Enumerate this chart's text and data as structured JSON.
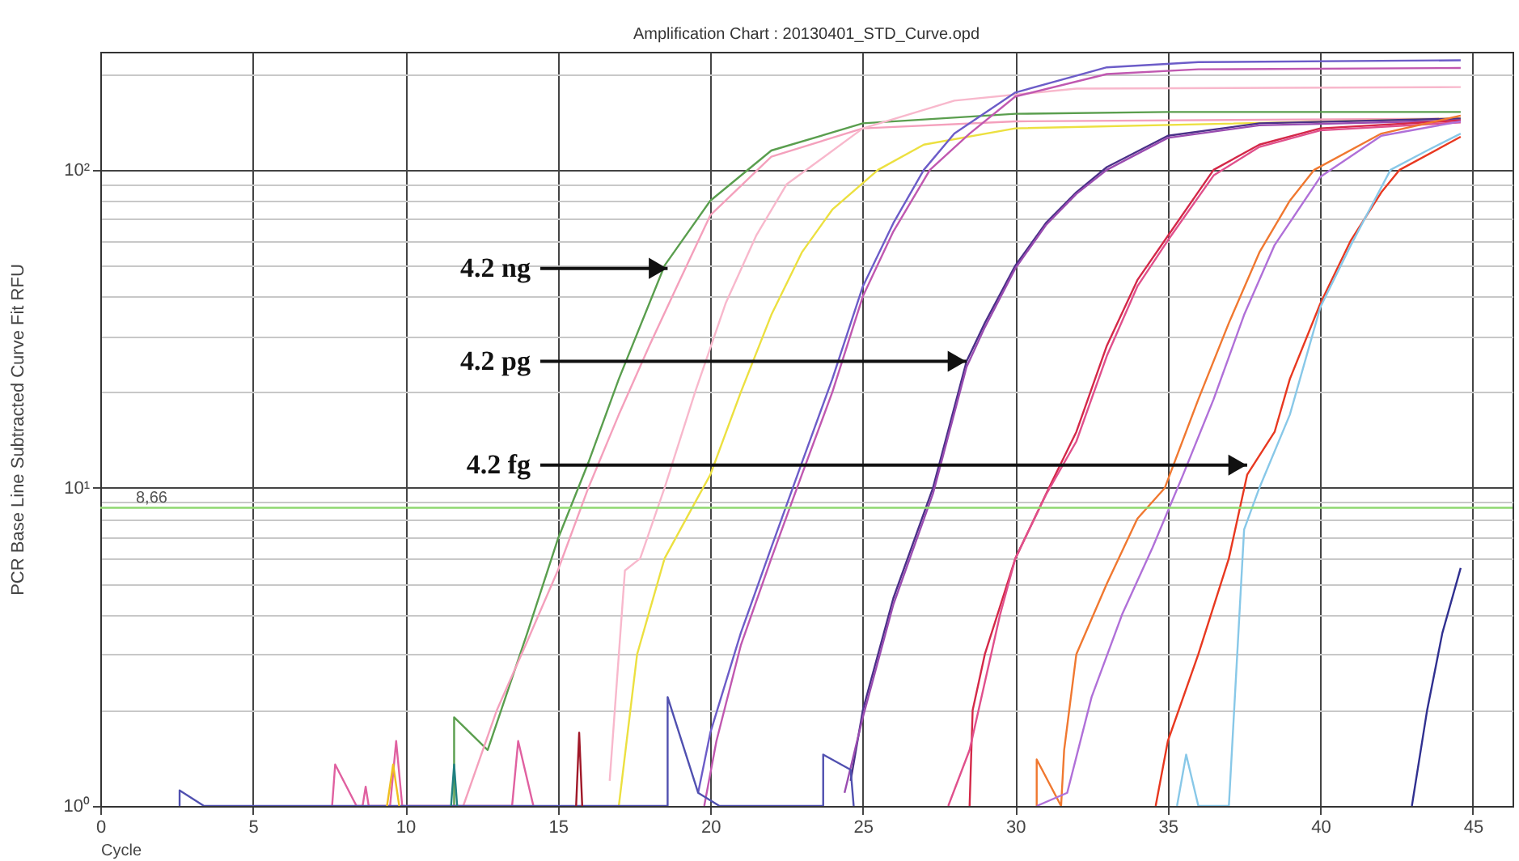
{
  "chart_data": {
    "type": "line",
    "title": "Amplification Chart : 20130401_STD_Curve.opd",
    "xlabel": "Cycle",
    "ylabel": "PCR Base Line Subtracted Curve Fit RFU",
    "xlim": [
      0,
      46.3
    ],
    "xticks": [
      0,
      5,
      10,
      15,
      20,
      25,
      30,
      35,
      40,
      45
    ],
    "ylim": [
      1,
      235
    ],
    "yticks": [
      {
        "value": 1,
        "label": "10⁰"
      },
      {
        "value": 2,
        "label": null
      },
      {
        "value": 3,
        "label": null
      },
      {
        "value": 4,
        "label": null
      },
      {
        "value": 5,
        "label": null
      },
      {
        "value": 6,
        "label": null
      },
      {
        "value": 7,
        "label": null
      },
      {
        "value": 8,
        "label": null
      },
      {
        "value": 9,
        "label": null
      },
      {
        "value": 10,
        "label": "10¹"
      },
      {
        "value": 20,
        "label": null
      },
      {
        "value": 30,
        "label": null
      },
      {
        "value": 40,
        "label": null
      },
      {
        "value": 50,
        "label": null
      },
      {
        "value": 60,
        "label": null
      },
      {
        "value": 70,
        "label": null
      },
      {
        "value": 80,
        "label": null
      },
      {
        "value": 90,
        "label": null
      },
      {
        "value": 100,
        "label": "10²"
      },
      {
        "value": 200,
        "label": null
      }
    ],
    "log": "y",
    "grid": true,
    "line_style": "solid",
    "ref_lines": [
      {
        "axis": "y",
        "value": 8.66,
        "label": "8,66",
        "color": "#8fd870"
      }
    ],
    "annotations": [
      {
        "text": "4.2 ng",
        "x": 18.6,
        "y": 49
      },
      {
        "text": "4.2 pg",
        "x": 28.4,
        "y": 25
      },
      {
        "text": "4.2 fg",
        "x": 37.6,
        "y": 11.8
      }
    ],
    "series": [
      {
        "color": "#5a9e4e",
        "x": [
          11.6,
          11.6,
          12.7,
          14,
          15,
          16,
          17,
          18.5,
          20,
          22,
          25,
          30,
          35,
          40,
          44.6
        ],
        "values": [
          1,
          1.9,
          1.5,
          3.5,
          6.9,
          12,
          22,
          50,
          80,
          115,
          140,
          150,
          152,
          152,
          152
        ]
      },
      {
        "color": "#f4a0bc",
        "x": [
          11.9,
          13,
          14,
          15,
          16,
          17,
          18,
          19,
          20,
          22,
          25,
          30,
          44.6
        ],
        "values": [
          1,
          2,
          3.3,
          5.5,
          10,
          17,
          28,
          45,
          72,
          110,
          135,
          142,
          145
        ]
      },
      {
        "color": "#f8b8cc",
        "x": [
          16.7,
          17.2,
          17.7,
          18.5,
          19.5,
          20.5,
          21.5,
          22.5,
          25,
          28,
          32,
          44.6
        ],
        "values": [
          1.2,
          5.5,
          6,
          10,
          20,
          38,
          62,
          90,
          135,
          165,
          180,
          182
        ]
      },
      {
        "color": "#ece040",
        "x": [
          17,
          17.6,
          18.5,
          19.5,
          20,
          21,
          22,
          23,
          24,
          25.5,
          27,
          30,
          44.6
        ],
        "values": [
          1,
          3,
          6,
          9,
          11,
          20,
          35,
          55,
          75,
          100,
          120,
          135,
          145
        ]
      },
      {
        "color": "#6c5cc8",
        "x": [
          19.6,
          20,
          21,
          22,
          23,
          24,
          25,
          26,
          27,
          28,
          30,
          33,
          36,
          44.6
        ],
        "values": [
          1.1,
          1.7,
          3.5,
          6.5,
          12,
          22,
          43,
          68,
          100,
          130,
          175,
          210,
          218,
          221
        ]
      },
      {
        "color": "#c058b0",
        "x": [
          19.8,
          20.2,
          21,
          22,
          23,
          24,
          25,
          26,
          27.2,
          28.5,
          30,
          33,
          36,
          44.6
        ],
        "values": [
          1,
          1.6,
          3.2,
          6,
          11,
          20,
          40,
          64,
          100,
          130,
          170,
          200,
          207,
          209
        ]
      },
      {
        "color": "#4a3088",
        "x": [
          24.6,
          25,
          26,
          27.3,
          28.4,
          29,
          30,
          31,
          32,
          33,
          35,
          38,
          44.6
        ],
        "values": [
          1.2,
          2,
          4.5,
          10,
          25,
          33,
          50,
          68,
          85,
          102,
          128,
          140,
          145
        ]
      },
      {
        "color": "#9a4cb0",
        "x": [
          24.4,
          25,
          26,
          27.3,
          28.4,
          29,
          30,
          31,
          32,
          33,
          35,
          38,
          44.6
        ],
        "values": [
          1.1,
          1.9,
          4.3,
          9.6,
          24,
          32,
          49,
          67,
          84,
          100,
          126,
          138,
          143
        ]
      },
      {
        "color": "#d42848",
        "x": [
          28.5,
          28.6,
          29,
          30,
          31.1,
          32,
          33,
          34,
          35,
          36.5,
          38,
          40,
          44.6
        ],
        "values": [
          1,
          2,
          3,
          6,
          10,
          15,
          28,
          45,
          62,
          100,
          120,
          135,
          143
        ]
      },
      {
        "color": "#e0508c",
        "x": [
          27.8,
          28.5,
          29.5,
          30,
          31,
          32,
          33,
          34,
          35,
          36.5,
          38,
          40,
          44.6
        ],
        "values": [
          1,
          1.5,
          4,
          6,
          9.5,
          14,
          26,
          43,
          60,
          96,
          118,
          133,
          141
        ]
      },
      {
        "color": "#f07830",
        "x": [
          30.7,
          30.7,
          31.5,
          31.6,
          32,
          33,
          34,
          34.9,
          36,
          37,
          38,
          39,
          39.8,
          42,
          44.6
        ],
        "values": [
          1,
          1.4,
          1,
          1.5,
          3,
          5,
          8,
          10,
          19,
          33,
          55,
          80,
          100,
          130,
          148
        ]
      },
      {
        "color": "#b070d8",
        "x": [
          30.7,
          31.7,
          32.5,
          33.5,
          34.5,
          35.5,
          36.5,
          37.5,
          38.5,
          40,
          42,
          44.6
        ],
        "values": [
          1,
          1.1,
          2.2,
          4,
          6.5,
          11,
          19,
          35,
          58,
          95,
          128,
          142
        ]
      },
      {
        "color": "#e83820",
        "x": [
          34.6,
          35,
          36,
          37,
          37.6,
          38.5,
          39,
          40,
          41,
          42,
          42.6,
          44.6
        ],
        "values": [
          1,
          1.6,
          3,
          6,
          11,
          15,
          22,
          38,
          60,
          85,
          100,
          127
        ]
      },
      {
        "color": "#88c8e8",
        "x": [
          35.3,
          35.6,
          36,
          37,
          37.5,
          38,
          39,
          40,
          41,
          42.3,
          43.5,
          44.6
        ],
        "values": [
          1,
          1.45,
          1,
          1,
          7.4,
          10,
          17,
          37,
          58,
          100,
          115,
          130
        ]
      },
      {
        "color": "#303090",
        "x": [
          43,
          43.5,
          44,
          44.6
        ],
        "values": [
          1,
          2,
          3.5,
          5.6
        ]
      },
      {
        "color": "#e060a0",
        "x": [
          7.6,
          7.7,
          8.4,
          8.6,
          8.7,
          8.8,
          9.5,
          9.7,
          9.9,
          13.5,
          13.7,
          14.2
        ],
        "values": [
          1,
          1.35,
          1,
          1,
          1.15,
          1,
          1,
          1.6,
          1,
          1,
          1.6,
          1
        ]
      },
      {
        "color": "#5050b0",
        "x": [
          2.6,
          2.6,
          3.4,
          18.6,
          18.6,
          19.6,
          20.3,
          23.7,
          23.7,
          24.6,
          24.7
        ],
        "values": [
          1,
          1.12,
          1,
          1,
          2.2,
          1.1,
          1,
          1,
          1.45,
          1.3,
          1
        ]
      },
      {
        "color": "#a01828",
        "x": [
          15.6,
          15.7,
          15.8
        ],
        "values": [
          1,
          1.7,
          1
        ]
      },
      {
        "color": "#f0c020",
        "x": [
          9.4,
          9.6,
          9.8
        ],
        "values": [
          1,
          1.35,
          1
        ]
      },
      {
        "color": "#208080",
        "x": [
          11.5,
          11.6,
          11.7
        ],
        "values": [
          1,
          1.35,
          1
        ]
      }
    ]
  }
}
